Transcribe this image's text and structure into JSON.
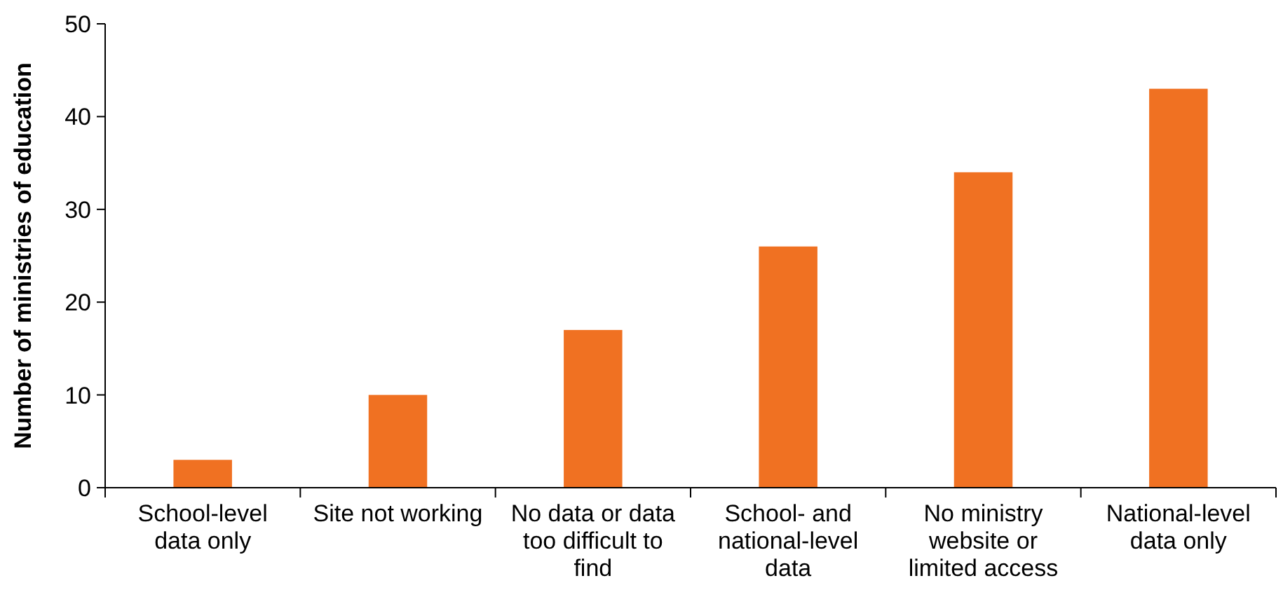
{
  "chart_data": {
    "type": "bar",
    "ylabel": "Number of ministries of education",
    "categories": [
      "School-level data only",
      "Site not working",
      "No data or data too difficult to find",
      "School- and national-level data",
      "No ministry website or limited access",
      "National-level data only"
    ],
    "values": [
      3,
      10,
      17,
      26,
      34,
      43
    ],
    "color": "#f07122",
    "ylim": [
      0,
      50
    ],
    "yticks": [
      0,
      10,
      20,
      30,
      40,
      50
    ],
    "grid": false
  }
}
